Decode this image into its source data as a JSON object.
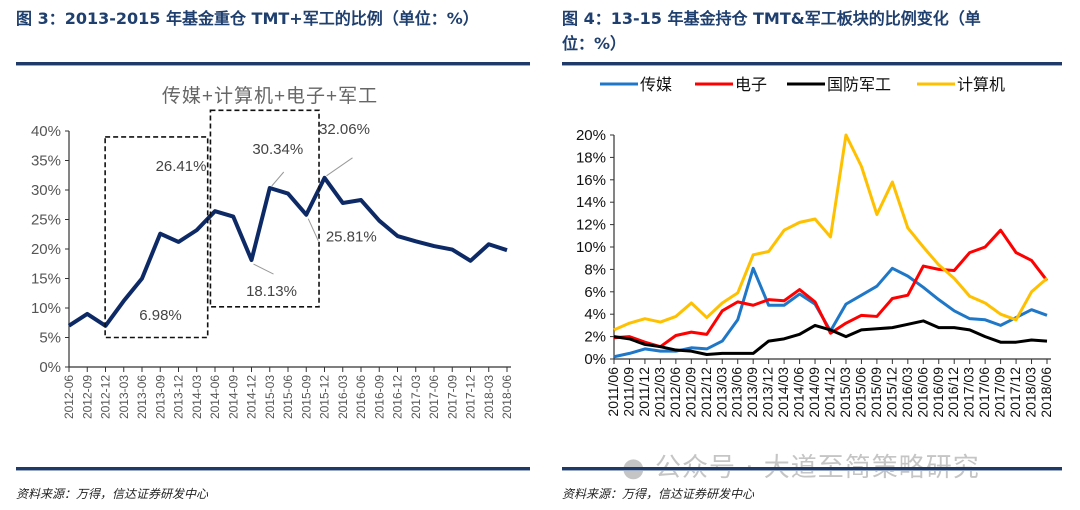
{
  "left": {
    "heading": "图 3：2013-2015 年基金重仓 TMT+军工的比例（单位：%）",
    "source": "资料来源：万得，信达证券研发中心"
  },
  "right": {
    "heading_line1": "图 4：13-15 年基金持仓 TMT&军工板块的比例变化（单",
    "heading_line2": "位：%）",
    "source": "资料来源：万得，信达证券研发中心"
  },
  "watermark": "公众号 · 大道至简策略研究",
  "chart_data": [
    {
      "type": "line",
      "title": "传媒+计算机+电子+军工",
      "categories": [
        "2012-06",
        "2012-09",
        "2012-12",
        "2013-03",
        "2013-06",
        "2013-09",
        "2013-12",
        "2014-03",
        "2014-06",
        "2014-09",
        "2014-12",
        "2015-03",
        "2015-06",
        "2015-09",
        "2015-12",
        "2016-03",
        "2016-06",
        "2016-09",
        "2016-12",
        "2017-03",
        "2017-06",
        "2017-09",
        "2017-12",
        "2018-03",
        "2018-06"
      ],
      "series": [
        {
          "values": [
            7.0,
            9.0,
            6.98,
            11.2,
            15.0,
            22.6,
            21.2,
            23.2,
            26.41,
            25.5,
            18.13,
            30.34,
            29.4,
            25.81,
            32.06,
            27.8,
            28.3,
            24.8,
            22.2,
            21.3,
            20.5,
            19.9,
            18.0,
            20.8,
            19.8
          ],
          "color": "#0d2a66"
        }
      ],
      "yticks": [
        "0%",
        "5%",
        "10%",
        "15%",
        "20%",
        "25%",
        "30%",
        "35%",
        "40%"
      ],
      "ylim": [
        0,
        40
      ],
      "annotations": [
        {
          "category": "2012-12",
          "text": "6.98%"
        },
        {
          "category": "2014-06",
          "text": "26.41%"
        },
        {
          "category": "2014-12",
          "text": "18.13%"
        },
        {
          "category": "2015-03",
          "text": "30.34%"
        },
        {
          "category": "2015-09",
          "text": "25.81%"
        },
        {
          "category": "2015-12",
          "text": "32.06%"
        }
      ],
      "grid": false
    },
    {
      "type": "line",
      "categories": [
        "2011/06",
        "2011/09",
        "2011/12",
        "2012/03",
        "2012/06",
        "2012/09",
        "2012/12",
        "2013/03",
        "2013/06",
        "2013/09",
        "2013/12",
        "2014/03",
        "2014/06",
        "2014/09",
        "2014/12",
        "2015/03",
        "2015/06",
        "2015/09",
        "2015/12",
        "2016/03",
        "2016/06",
        "2016/09",
        "2016/12",
        "2017/03",
        "2017/06",
        "2017/09",
        "2017/12",
        "2018/03",
        "2018/06"
      ],
      "series": [
        {
          "name": "传媒",
          "color": "#1f77c8",
          "values": [
            0.2,
            0.5,
            0.9,
            0.7,
            0.7,
            1.0,
            0.9,
            1.6,
            3.5,
            8.1,
            4.8,
            4.8,
            5.8,
            4.9,
            2.5,
            4.9,
            5.7,
            6.5,
            8.1,
            7.4,
            6.4,
            5.3,
            4.3,
            3.6,
            3.5,
            3.0,
            3.7,
            4.4,
            3.9
          ]
        },
        {
          "name": "电子",
          "color": "#ff0000",
          "values": [
            1.9,
            2.0,
            1.5,
            1.1,
            2.1,
            2.4,
            2.2,
            4.3,
            5.1,
            4.8,
            5.3,
            5.2,
            6.2,
            5.1,
            2.3,
            3.2,
            3.9,
            3.8,
            5.4,
            5.7,
            8.3,
            8.0,
            7.9,
            9.5,
            10.0,
            11.5,
            9.5,
            8.8,
            7.0
          ]
        },
        {
          "name": "国防军工",
          "color": "#000000",
          "values": [
            2.0,
            1.8,
            1.3,
            1.1,
            0.8,
            0.7,
            0.4,
            0.5,
            0.5,
            0.5,
            1.6,
            1.8,
            2.2,
            3.0,
            2.6,
            2.0,
            2.6,
            2.7,
            2.8,
            3.1,
            3.4,
            2.8,
            2.8,
            2.6,
            2.0,
            1.5,
            1.5,
            1.7,
            1.6
          ]
        },
        {
          "name": "计算机",
          "color": "#ffc000",
          "values": [
            2.6,
            3.2,
            3.6,
            3.3,
            3.8,
            5.0,
            3.7,
            5.0,
            5.9,
            9.3,
            9.6,
            11.5,
            12.2,
            12.5,
            10.9,
            20.0,
            17.2,
            12.9,
            15.8,
            11.7,
            10.0,
            8.4,
            7.2,
            5.6,
            5.0,
            4.0,
            3.5,
            6.0,
            7.2
          ]
        }
      ],
      "yticks": [
        "0%",
        "2%",
        "4%",
        "6%",
        "8%",
        "10%",
        "12%",
        "14%",
        "16%",
        "18%",
        "20%"
      ],
      "ylim": [
        0,
        20
      ],
      "legend": "top",
      "grid": false
    }
  ]
}
